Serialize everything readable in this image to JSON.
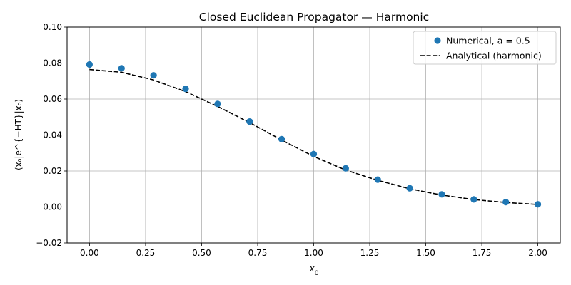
{
  "chart_data": {
    "type": "scatter",
    "title": "Closed Euclidean Propagator — Harmonic",
    "xlabel_main": "x",
    "xlabel_sub": "0",
    "ylabel": "⟨x₀|e^{−HT}|x₀⟩",
    "xlim": [
      -0.1,
      2.1
    ],
    "ylim": [
      -0.02,
      0.1
    ],
    "xticks": [
      0.0,
      0.25,
      0.5,
      0.75,
      1.0,
      1.25,
      1.5,
      1.75,
      2.0
    ],
    "xtick_labels": [
      "0.00",
      "0.25",
      "0.50",
      "0.75",
      "1.00",
      "1.25",
      "1.50",
      "1.75",
      "2.00"
    ],
    "yticks": [
      -0.02,
      0.0,
      0.02,
      0.04,
      0.06,
      0.08,
      0.1
    ],
    "ytick_labels": [
      "−0.02",
      "0.00",
      "0.02",
      "0.04",
      "0.06",
      "0.08",
      "0.10"
    ],
    "grid": true,
    "legend_position": "top-right",
    "series": [
      {
        "name": "Numerical, a = 0.5",
        "kind": "markers",
        "color": "#1f77b4",
        "x": [
          0.0,
          0.1429,
          0.2857,
          0.4286,
          0.5714,
          0.7143,
          0.8571,
          1.0,
          1.1429,
          1.2857,
          1.4286,
          1.5714,
          1.7143,
          1.8571,
          2.0
        ],
        "y": [
          0.0792,
          0.0771,
          0.0732,
          0.0657,
          0.0573,
          0.0475,
          0.0377,
          0.0294,
          0.0215,
          0.0152,
          0.0104,
          0.007,
          0.0042,
          0.0027,
          0.0015
        ]
      },
      {
        "name": "Analytical (harmonic)",
        "kind": "dashed-line",
        "color": "#000000",
        "x": [
          0.0,
          0.1429,
          0.2857,
          0.4286,
          0.5714,
          0.7143,
          0.8571,
          1.0,
          1.1429,
          1.2857,
          1.4286,
          1.5714,
          1.7143,
          1.8571,
          2.0
        ],
        "y": [
          0.0764,
          0.0749,
          0.0706,
          0.0641,
          0.0559,
          0.0469,
          0.0372,
          0.0281,
          0.0205,
          0.0148,
          0.0101,
          0.0066,
          0.0041,
          0.0025,
          0.0014
        ]
      }
    ]
  }
}
